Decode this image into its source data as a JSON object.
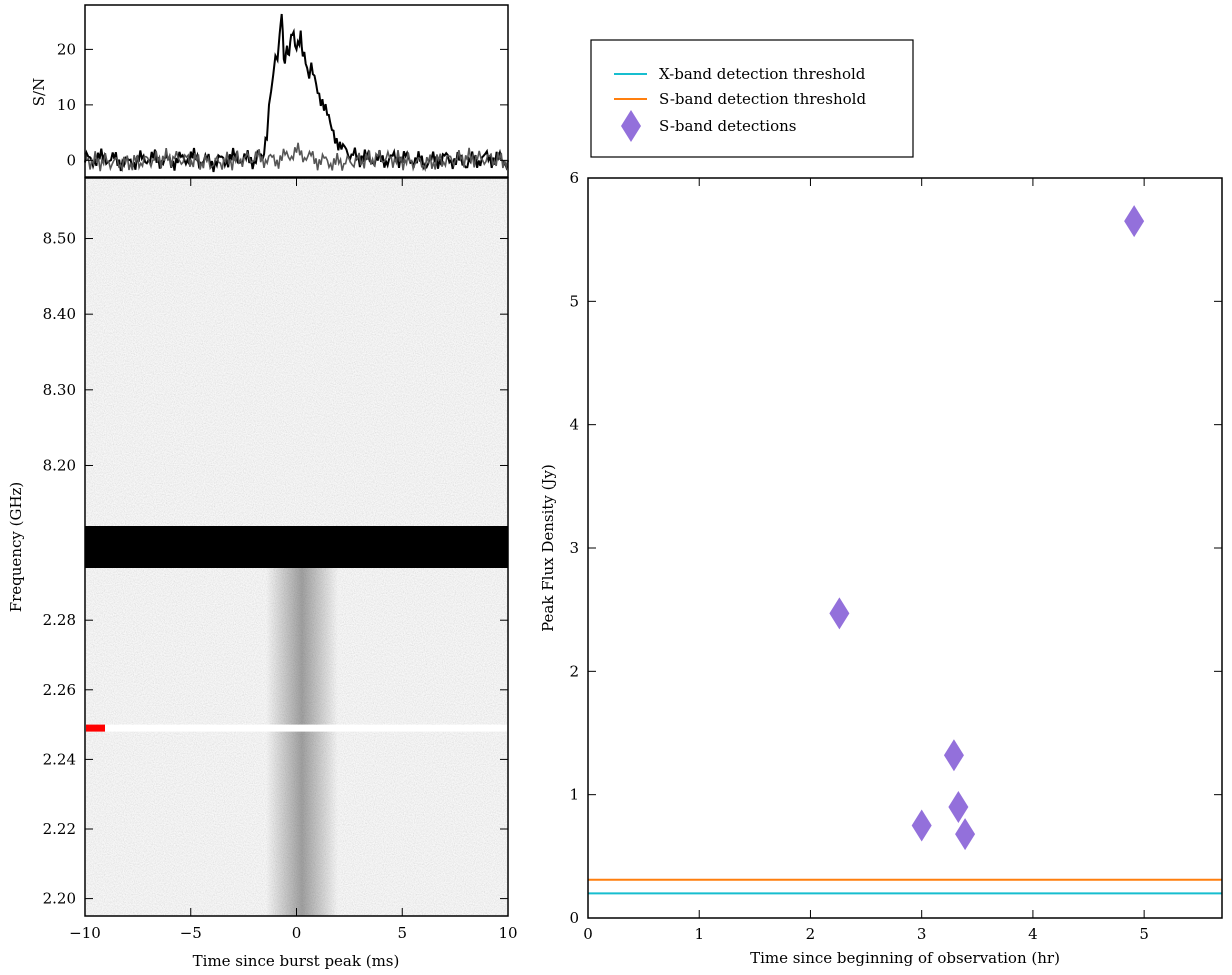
{
  "chart_data": [
    {
      "type": "line",
      "panel": "left-top",
      "ylabel": "S/N",
      "xlim": [
        -10,
        10
      ],
      "ylim": [
        -3,
        28
      ],
      "yticks": [
        0,
        10,
        20
      ],
      "yticklabels": [
        "0",
        "10",
        "20"
      ],
      "series": [
        {
          "color": "#000000",
          "x": [
            -10,
            -9,
            -8,
            -7,
            -6,
            -5,
            -4,
            -3,
            -2,
            -1.6,
            -1.4,
            -1.2,
            -1.0,
            -0.8,
            -0.7,
            -0.6,
            -0.5,
            -0.4,
            -0.3,
            -0.2,
            0,
            0.2,
            0.3,
            0.5,
            0.7,
            1.0,
            1.3,
            1.6,
            1.9,
            2.2,
            2.6,
            3,
            4,
            5,
            6,
            7,
            8,
            9,
            10
          ],
          "y": [
            0,
            0.5,
            -0.5,
            0.5,
            -0.3,
            0.6,
            -0.4,
            0.5,
            0,
            1,
            5,
            13,
            18,
            21,
            28,
            17,
            20,
            19,
            21,
            23,
            20,
            23,
            19,
            16,
            16,
            13,
            10,
            6,
            4,
            2,
            1,
            0.5,
            0,
            0.5,
            -0.3,
            0.4,
            -0.4,
            0.5,
            0
          ]
        },
        {
          "color": "#555555",
          "x": [
            -10,
            -8,
            -6,
            -4,
            -2,
            -1,
            0,
            1,
            2,
            4,
            6,
            8,
            10
          ],
          "y": [
            0,
            -0.5,
            0.5,
            -0.5,
            0.5,
            0,
            1.5,
            0,
            -0.5,
            0.5,
            -0.5,
            0.5,
            0
          ]
        }
      ]
    },
    {
      "type": "heatmap",
      "panel": "left-bottom",
      "xlabel": "Time since burst peak (ms)",
      "ylabel": "Frequency (GHz)",
      "xlim": [
        -10,
        10
      ],
      "xticks": [
        -10,
        -5,
        0,
        5,
        10
      ],
      "xticklabels": [
        "−10",
        "−5",
        "0",
        "5",
        "10"
      ],
      "upper_band": {
        "ylim": [
          8.12,
          8.58
        ],
        "yticks": [
          8.2,
          8.3,
          8.4,
          8.5
        ],
        "yticklabels": [
          "8.20",
          "8.30",
          "8.40",
          "8.50"
        ]
      },
      "lower_band": {
        "ylim": [
          2.195,
          2.295
        ],
        "yticks": [
          2.2,
          2.22,
          2.24,
          2.26,
          2.28
        ],
        "yticklabels": [
          "2.20",
          "2.22",
          "2.24",
          "2.26",
          "2.28"
        ],
        "masked_channel": 2.249,
        "marker_color": "#ff0000"
      }
    },
    {
      "type": "scatter",
      "panel": "right",
      "xlabel": "Time since beginning of observation (hr)",
      "ylabel": "Peak Flux Density (Jy)",
      "xlim": [
        0,
        5.7
      ],
      "ylim": [
        0,
        6
      ],
      "xticks": [
        0,
        1,
        2,
        3,
        4,
        5
      ],
      "yticks": [
        0,
        1,
        2,
        3,
        4,
        5,
        6
      ],
      "legend": {
        "placement": "top-left",
        "entries": [
          {
            "label": "X-band detection threshold",
            "color": "#17becf",
            "kind": "line"
          },
          {
            "label": "S-band detection threshold",
            "color": "#ff7f0e",
            "kind": "line"
          },
          {
            "label": "S-band detections",
            "color": "#9370db",
            "kind": "diamond"
          }
        ]
      },
      "thresholds": [
        {
          "name": "X-band detection threshold",
          "y": 0.2,
          "color": "#17becf"
        },
        {
          "name": "S-band detection threshold",
          "y": 0.31,
          "color": "#ff7f0e"
        }
      ],
      "points": {
        "name": "S-band detections",
        "color": "#9370db",
        "x": [
          2.26,
          3.0,
          3.29,
          3.33,
          3.39,
          4.91
        ],
        "y": [
          2.47,
          0.75,
          1.32,
          0.9,
          0.68,
          5.65
        ]
      }
    }
  ]
}
